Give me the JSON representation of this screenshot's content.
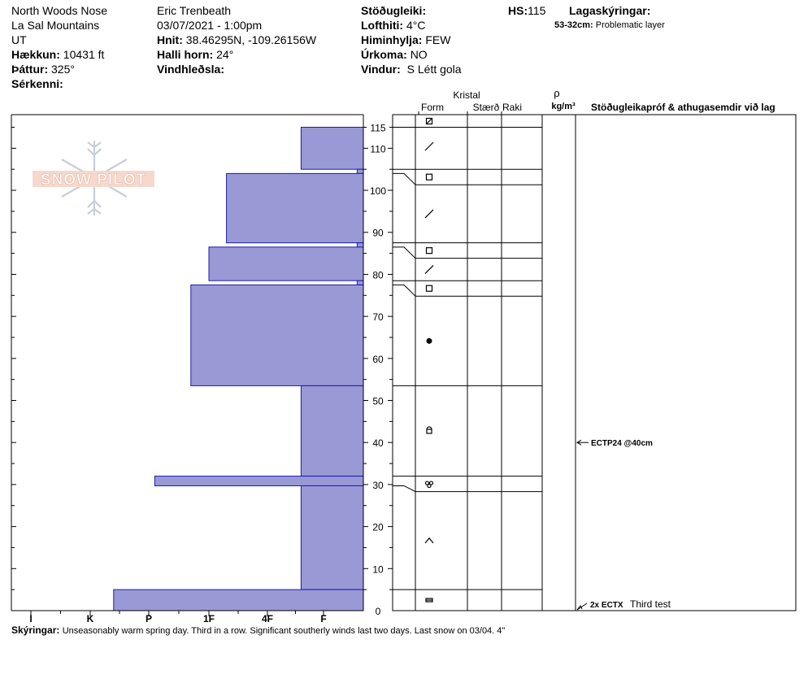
{
  "header": {
    "location": "North Woods Nose",
    "range": "La Sal Mountains",
    "state": "UT",
    "elevation_label": "Hækkun:",
    "elevation": "10431 ft",
    "aspect_label": "Þáttur:",
    "aspect": "325°",
    "features_label": "Sérkenni:",
    "observer": "Eric Trenbeath",
    "datetime": "03/07/2021 - 1:00pm",
    "coords_label": "Hnit:",
    "coords": "38.46295N, -109.26156W",
    "slope_label": "Halli horn:",
    "slope": "24°",
    "wind_loading_label": "Vindhleðsla:",
    "stability_label": "Stöðugleiki:",
    "airtemp_label": "Lofthiti:",
    "airtemp": "4°C",
    "sky_label": "Himinhylja:",
    "sky": "FEW",
    "precip_label": "Úrkoma:",
    "precip": "NO",
    "wind_label": "Vindur:",
    "wind": "S Létt gola",
    "hs_label": "HS:",
    "hs": "115",
    "layer_notes_label": "Lagaskýringar:",
    "layer_note_range": "53-32cm:",
    "layer_note_text": "Problematic layer"
  },
  "columns": {
    "crystal": "Kristal",
    "form": "Form",
    "size": "Stærð",
    "moisture": "Raki",
    "density_symbol": "ρ",
    "density_unit": "kg/m³",
    "tests": "Stöðugleikapróf & athugasemdir við lag"
  },
  "logo_text": "SNOW PILOT",
  "comments_label": "Skýringar:",
  "comments": "Unseasonably warm spring day. Third in a row. Significant southerly winds last two days. Last snow on 03/04. 4\"",
  "chart_data": {
    "type": "bar",
    "orientation": "horizontal",
    "title": "",
    "y_axis": {
      "range": [
        0,
        115
      ],
      "ticks": [
        0,
        10,
        20,
        30,
        40,
        50,
        60,
        70,
        80,
        90,
        100,
        110,
        115
      ]
    },
    "hardness_scale": [
      "I",
      "K",
      "P",
      "1F",
      "4F",
      "F"
    ],
    "layers": [
      {
        "top": 115,
        "bottom": 105,
        "hardness": 4.6,
        "form_icon": "decomposing-fragments"
      },
      {
        "top": 105,
        "bottom": 104,
        "hardness": 5.6,
        "form_icon": "faceted"
      },
      {
        "top": 104,
        "bottom": 87.5,
        "hardness": 3.3,
        "form_icon": "decomposing-fragments"
      },
      {
        "top": 87.5,
        "bottom": 86.5,
        "hardness": 5.6,
        "form_icon": "faceted"
      },
      {
        "top": 86.5,
        "bottom": 78.5,
        "hardness": 3.0,
        "form_icon": "decomposing-fragments"
      },
      {
        "top": 78.5,
        "bottom": 77.5,
        "hardness": 5.6,
        "form_icon": "faceted"
      },
      {
        "top": 77.5,
        "bottom": 53.5,
        "hardness": 2.7,
        "form_icon": "rounded"
      },
      {
        "top": 53.5,
        "bottom": 32,
        "hardness": 4.6,
        "form_icon": "faceted-rounding"
      },
      {
        "top": 32,
        "bottom": 29.7,
        "hardness": 2.1,
        "form_icon": "melt-freeze"
      },
      {
        "top": 29.7,
        "bottom": 5,
        "hardness": 4.6,
        "form_icon": "depth-hoar"
      },
      {
        "top": 5,
        "bottom": 0,
        "hardness": 1.4,
        "form_icon": "ice-formation"
      }
    ],
    "tests": [
      {
        "depth": 40,
        "label": "ECTP24 @40cm",
        "note": ""
      },
      {
        "depth": 0,
        "label": "2x ECTX",
        "note": "Third test"
      }
    ]
  }
}
